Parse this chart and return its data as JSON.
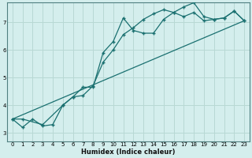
{
  "xlabel": "Humidex (Indice chaleur)",
  "background_color": "#d4eeed",
  "grid_color": "#b8d8d4",
  "line_color": "#1a7070",
  "xlim": [
    -0.5,
    23.5
  ],
  "ylim": [
    2.7,
    7.7
  ],
  "yticks": [
    3,
    4,
    5,
    6,
    7
  ],
  "xticks": [
    0,
    1,
    2,
    3,
    4,
    5,
    6,
    7,
    8,
    9,
    10,
    11,
    12,
    13,
    14,
    15,
    16,
    17,
    18,
    19,
    20,
    21,
    22,
    23
  ],
  "line1_x": [
    0,
    1,
    2,
    3,
    4,
    5,
    6,
    7,
    8,
    9,
    10,
    11,
    12,
    13,
    14,
    15,
    16,
    17,
    18,
    19,
    20,
    21,
    22,
    23
  ],
  "line1_y": [
    3.5,
    3.2,
    3.5,
    3.25,
    3.3,
    4.0,
    4.3,
    4.65,
    4.65,
    5.9,
    6.3,
    7.15,
    6.7,
    6.6,
    6.6,
    7.1,
    7.35,
    7.2,
    7.35,
    7.05,
    7.1,
    7.15,
    7.4,
    7.05
  ],
  "line2_x": [
    0,
    1,
    3,
    5,
    6,
    7,
    8,
    9,
    10,
    11,
    12,
    13,
    14,
    15,
    16,
    17,
    18,
    19,
    20,
    21,
    22,
    23
  ],
  "line2_y": [
    3.5,
    3.5,
    3.3,
    4.0,
    4.3,
    4.35,
    4.7,
    5.55,
    6.0,
    6.55,
    6.8,
    7.1,
    7.3,
    7.45,
    7.35,
    7.55,
    7.7,
    7.2,
    7.1,
    7.15,
    7.4,
    7.05
  ],
  "line3_x": [
    0,
    23
  ],
  "line3_y": [
    3.5,
    7.05
  ]
}
